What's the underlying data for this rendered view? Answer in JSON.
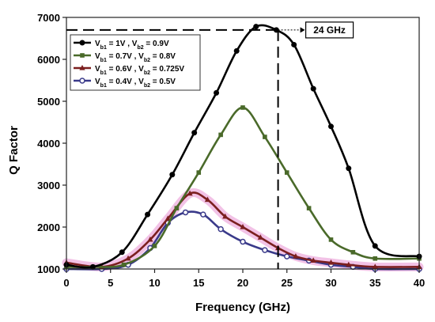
{
  "chart_data": {
    "type": "line",
    "title": "",
    "xlabel": "Frequency (GHz)",
    "ylabel": "Q Factor",
    "xlim": [
      0,
      40
    ],
    "ylim": [
      1000,
      7000
    ],
    "xticks": [
      0,
      5,
      10,
      15,
      20,
      25,
      30,
      35,
      40
    ],
    "yticks": [
      1000,
      2000,
      3000,
      4000,
      5000,
      6000,
      7000
    ],
    "grid": false,
    "legend_position": "top-left",
    "series": [
      {
        "name": "V_b1 = 1V , V_b2 = 0.9V",
        "label_parts": [
          "V",
          "b1",
          " = 1V , V",
          "b2",
          " = 0.9V"
        ],
        "color": "#000000",
        "marker": "circle-filled",
        "x": [
          0,
          3,
          6.3,
          9.2,
          12,
          14.5,
          17,
          19.3,
          21.5,
          23.8,
          25.8,
          28,
          30,
          32,
          35,
          40
        ],
        "y": [
          1100,
          1050,
          1400,
          2300,
          3250,
          4250,
          5200,
          6200,
          6780,
          6700,
          6350,
          5300,
          4400,
          3400,
          1550,
          1300
        ]
      },
      {
        "name": "V_b1 = 0.7V , V_b2 = 0.8V",
        "label_parts": [
          "V",
          "b1",
          " = 0.7V , V",
          "b2",
          " = 0.8V"
        ],
        "color": "#4a6a2a",
        "marker": "square",
        "x": [
          0,
          3,
          6.5,
          10,
          12.5,
          15,
          17.5,
          20,
          22.5,
          25,
          27.5,
          30,
          32.5,
          35,
          40
        ],
        "y": [
          1050,
          1050,
          1100,
          1550,
          2450,
          3300,
          4200,
          4850,
          4150,
          3300,
          2450,
          1700,
          1400,
          1250,
          1250
        ]
      },
      {
        "name": "V_b1 = 0.6V , V_b2 = 0.725V",
        "label_parts": [
          "V",
          "b1",
          " = 0.6V , V",
          "b2",
          " = 0.725V"
        ],
        "color": "#7b1f1f",
        "marker": "triangle",
        "x": [
          0,
          4,
          7,
          9.5,
          11.5,
          14,
          16,
          18,
          20,
          22,
          24,
          26,
          28,
          30,
          32,
          35,
          40
        ],
        "y": [
          1150,
          1050,
          1250,
          1700,
          2200,
          2800,
          2650,
          2250,
          2000,
          1750,
          1500,
          1300,
          1200,
          1150,
          1100,
          1050,
          1050
        ]
      },
      {
        "name": "V_b1 = 0.4V , V_b2 = 0.5V",
        "label_parts": [
          "V",
          "b1",
          " = 0.4V , V",
          "b2",
          " = 0.5V"
        ],
        "color": "#3a3a8a",
        "marker": "circle-open",
        "x": [
          0,
          4,
          7,
          9.5,
          11.5,
          13.5,
          15.5,
          17.5,
          20,
          22.5,
          25,
          27.5,
          30,
          32.5,
          35,
          40
        ],
        "y": [
          1000,
          1000,
          1100,
          1500,
          2100,
          2350,
          2300,
          1950,
          1650,
          1450,
          1300,
          1200,
          1100,
          1050,
          1000,
          1000
        ]
      }
    ],
    "annotation": {
      "label": "24 GHz",
      "x": 24,
      "y": 6700
    }
  }
}
